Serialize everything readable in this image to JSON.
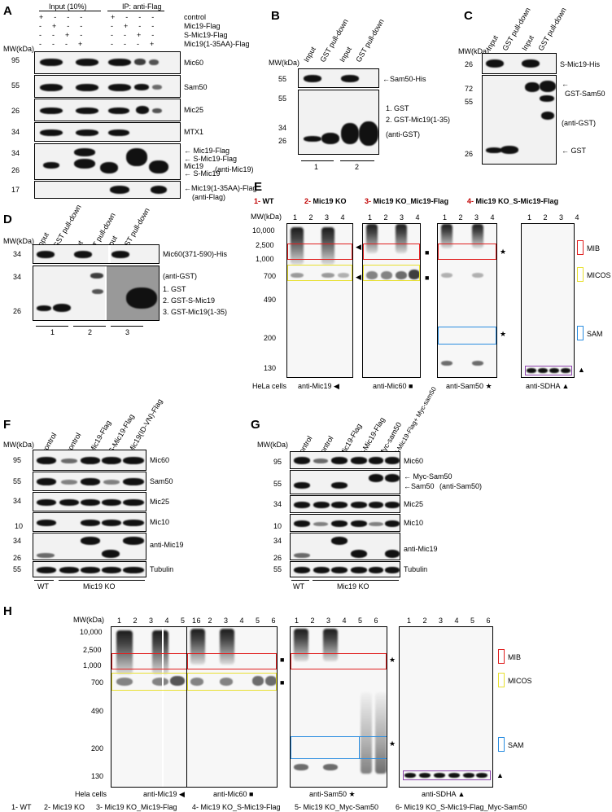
{
  "A": {
    "label": "A",
    "header_input": "Input (10%)",
    "header_ip": "IP: anti-Flag",
    "conditions": [
      "control",
      "Mic19-Flag",
      "S-Mic19-Flag",
      "Mic19(1-35AA)-Flag"
    ],
    "mw_label": "MW(kDa)",
    "blots": [
      {
        "mw": "95",
        "name": "Mic60"
      },
      {
        "mw": "55",
        "name": "Sam50"
      },
      {
        "mw": "26",
        "name": "Mic25"
      },
      {
        "mw": "34",
        "name": "MTX1"
      }
    ],
    "mic19_mw": [
      "34",
      "26"
    ],
    "mic19_labels": [
      "← Mic19-Flag",
      "← S-Mic19-Flag",
      "Mic19",
      "← S-Mic19",
      "(anti-Mic19)"
    ],
    "short_mw": "17",
    "short_labels": [
      "←Mic19(1-35AA)-Flag",
      "(anti-Flag)"
    ]
  },
  "B": {
    "label": "B",
    "lanes": [
      "Input",
      "GST pull-down",
      "Input",
      "GST pull-down"
    ],
    "mw_label": "MW(kDa)",
    "top_mw": "55",
    "top_label": "←Sam50-His",
    "bottom_mw": [
      "55",
      "34",
      "26"
    ],
    "legend": [
      "1. GST",
      "2. GST-Mic19(1-35)",
      "(anti-GST)"
    ],
    "groups": [
      "1",
      "2"
    ]
  },
  "C": {
    "label": "C",
    "lanes": [
      "Input",
      "GST pull-down",
      "Input",
      "GST pull-down"
    ],
    "mw_label": "MW(kDa)",
    "top_mw": "26",
    "top_label": "S-Mic19-His",
    "bottom_mw": [
      "72",
      "55",
      "26"
    ],
    "labels": [
      "←",
      "GST-Sam50",
      "(anti-GST)",
      "← GST"
    ]
  },
  "D": {
    "label": "D",
    "lanes": [
      "Input",
      "GST pull-down",
      "Input",
      "GST pull-down",
      "Input",
      "GST pull-down"
    ],
    "mw_label": "MW(kDa)",
    "top_mw": "34",
    "top_label": "Mic60(371-590)-His",
    "bottom_mw": [
      "34",
      "26"
    ],
    "legend": [
      "(anti-GST)",
      "1. GST",
      "2. GST-S-Mic19",
      "3. GST-Mic19(1-35)"
    ],
    "groups": [
      "1",
      "2",
      "3"
    ]
  },
  "E": {
    "label": "E",
    "legend": [
      {
        "num": "1-",
        "text": "WT"
      },
      {
        "num": "2-",
        "text": "Mic19 KO"
      },
      {
        "num": "3-",
        "text": "Mic19 KO_Mic19-Flag"
      },
      {
        "num": "4-",
        "text": "Mic19 KO_S-Mic19-Flag"
      }
    ],
    "mw_label": "MW(kDa)",
    "mw": [
      "10,000",
      "2,500",
      "1,000",
      "700",
      "490",
      "200",
      "130"
    ],
    "lanes": [
      "1",
      "2",
      "3",
      "4"
    ],
    "cell_label": "HeLa cells",
    "antibodies": [
      "anti-Mic19 ◀",
      "anti-Mic60 ■",
      "anti-Sam50 ★",
      "anti-SDHA ▲"
    ],
    "complexes": [
      "MIB",
      "MICOS",
      "SAM"
    ],
    "marks": [
      "◀",
      "◀",
      "■",
      "■",
      "★",
      "★",
      "▲"
    ]
  },
  "F": {
    "label": "F",
    "lanes": [
      "control",
      "control",
      "Mic19-Flag",
      "S-Mic19-Flag",
      "Mic19(ID-VN)-Flag"
    ],
    "mw_label": "MW(kDa)",
    "blots": [
      {
        "mw": "95",
        "name": "Mic60"
      },
      {
        "mw": "55",
        "name": "Sam50"
      },
      {
        "mw": "34",
        "name": "Mic25"
      },
      {
        "mw": "10",
        "name": "Mic10"
      }
    ],
    "mic19_mw": [
      "34",
      "26"
    ],
    "mic19_name": "anti-Mic19",
    "tub_mw": "55",
    "tub_name": "Tubulin",
    "groups": [
      "WT",
      "Mic19 KO"
    ]
  },
  "G": {
    "label": "G",
    "lanes": [
      "control",
      "control",
      "Mic19-Flag",
      "S-Mic19-Flag",
      "Myc-sam50",
      "S-Mic19-Flag+ Myc-sam50"
    ],
    "mw_label": "MW(kDa)",
    "mic60_mw": "95",
    "mic60": "Mic60",
    "sam50_mw": "55",
    "sam50_labels": [
      "← Myc-Sam50",
      "←Sam50",
      "(anti-Sam50)"
    ],
    "mic25_mw": "34",
    "mic25": "Mic25",
    "mic10_mw": "10",
    "mic10": "Mic10",
    "mic19_mw": [
      "34",
      "26"
    ],
    "mic19_name": "anti-Mic19",
    "tub_mw": "55",
    "tub_name": "Tubulin",
    "groups": [
      "WT",
      "Mic19 KO"
    ]
  },
  "H": {
    "label": "H",
    "mw_label": "MW(kDa)",
    "mw": [
      "10,000",
      "2,500",
      "1,000",
      "700",
      "490",
      "200",
      "130"
    ],
    "lanes": [
      "1",
      "2",
      "3",
      "4",
      "5",
      "6"
    ],
    "cell_label": "Hela cells",
    "antibodies": [
      "anti-Mic19 ◀",
      "anti-Mic60 ■",
      "anti-Sam50 ★",
      "anti-SDHA ▲"
    ],
    "complexes": [
      "MIB",
      "MICOS",
      "SAM"
    ],
    "legend": [
      "1- WT",
      "2- Mic19 KO",
      "3- Mic19 KO_Mic19-Flag",
      "4- Mic19 KO_S-Mic19-Flag",
      "5- Mic19 KO_Myc-Sam50",
      "6- Mic19 KO_S-Mic19-Flag_Myc-Sam50"
    ]
  },
  "colors": {
    "mib": "#e02020",
    "micos": "#e8e030",
    "sam": "#2a8de0",
    "sdha": "#8e44ad",
    "legend_red": "#c00000"
  }
}
